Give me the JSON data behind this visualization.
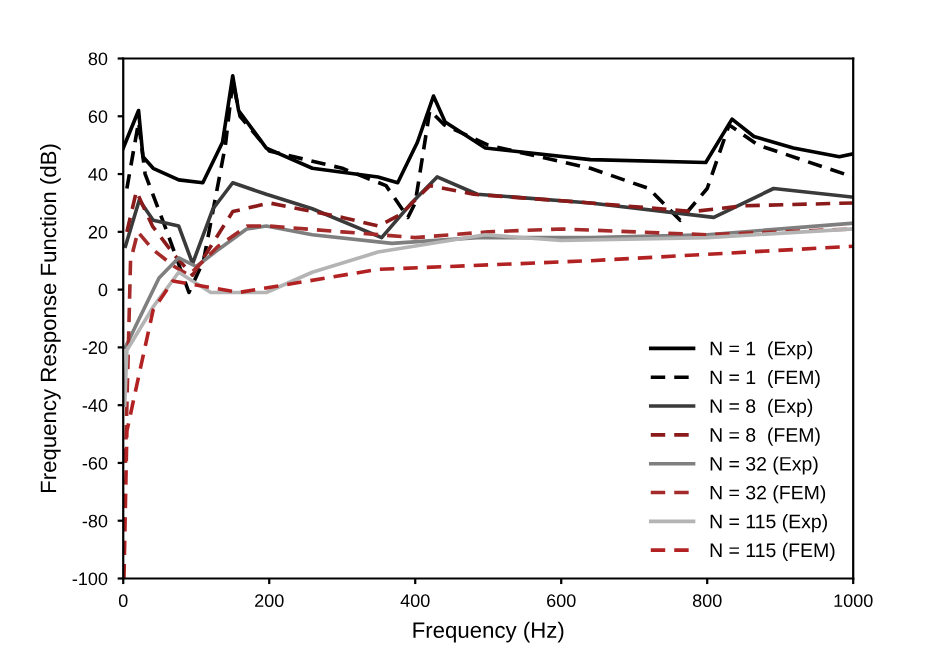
{
  "chart_data": {
    "type": "line",
    "xlabel": "Frequency (Hz)",
    "ylabel": "Frequency Response Function (dB)",
    "xlim": [
      0,
      1000
    ],
    "ylim": [
      -100,
      80
    ],
    "xticks": [
      0,
      200,
      400,
      600,
      800,
      1000
    ],
    "yticks": [
      -100,
      -80,
      -60,
      -40,
      -20,
      0,
      20,
      40,
      60,
      80
    ],
    "grid": false,
    "legend": "bottom right",
    "marker": "none",
    "series": [
      {
        "name": "N = 1  (Exp)",
        "color": "#000000",
        "line_style": "solid",
        "x": [
          0,
          21,
          27,
          41,
          76,
          109,
          136,
          150,
          158,
          196,
          259,
          349,
          376,
          403,
          425,
          441,
          496,
          640,
          798,
          834,
          864,
          918,
          981,
          1000
        ],
        "values": [
          49,
          62,
          46,
          42,
          38,
          37,
          51,
          74,
          62,
          49,
          42,
          39,
          37,
          51,
          67,
          58,
          49,
          45,
          44,
          59,
          53,
          49,
          46,
          47
        ]
      },
      {
        "name": "N = 1  (FEM)",
        "color": "#000000",
        "line_style": "dashed",
        "x": [
          5,
          21,
          30,
          60,
          90,
          110,
          140,
          150,
          160,
          200,
          300,
          360,
          390,
          400,
          420,
          440,
          500,
          640,
          720,
          763,
          800,
          830,
          870,
          1000
        ],
        "values": [
          35,
          58,
          40,
          20,
          -1,
          10,
          50,
          72,
          60,
          48,
          42,
          36,
          25,
          30,
          62,
          57,
          50,
          42,
          35,
          24,
          35,
          57,
          50,
          39
        ]
      },
      {
        "name": "N = 8  (Exp)",
        "color": "#3a3a3a",
        "line_style": "solid",
        "x": [
          3,
          22,
          41,
          76,
          95,
          123,
          150,
          196,
          259,
          354,
          395,
          430,
          485,
          640,
          809,
          891,
          1000
        ],
        "values": [
          15,
          31,
          24,
          22,
          9,
          28,
          37,
          33,
          28,
          18,
          30,
          39,
          33,
          30,
          25,
          35,
          32
        ]
      },
      {
        "name": "N = 8  (FEM)",
        "color": "#8b1a1a",
        "line_style": "dashed",
        "x": [
          5,
          18,
          40,
          70,
          95,
          120,
          150,
          200,
          300,
          350,
          380,
          420,
          480,
          640,
          780,
          850,
          1000
        ],
        "values": [
          20,
          34,
          22,
          12,
          5,
          15,
          27,
          30,
          25,
          22,
          26,
          36,
          33,
          30,
          27,
          29,
          30
        ]
      },
      {
        "name": "N = 32 (Exp)",
        "color": "#7f7f7f",
        "line_style": "solid",
        "x": [
          3,
          22,
          49,
          76,
          100,
          131,
          169,
          196,
          259,
          368,
          485,
          640,
          800,
          1000
        ],
        "values": [
          -20,
          -10,
          4,
          11,
          8,
          14,
          21,
          22,
          19,
          16,
          18,
          18,
          19,
          23
        ]
      },
      {
        "name": "N = 32 (FEM)",
        "color": "#a52a2a",
        "line_style": "dashed",
        "x": [
          3,
          10,
          20,
          40,
          70,
          90,
          130,
          170,
          200,
          300,
          400,
          500,
          600,
          800,
          1000
        ],
        "values": [
          -60,
          10,
          20,
          14,
          8,
          5,
          15,
          22,
          22,
          20,
          18,
          20,
          21,
          19,
          21
        ]
      },
      {
        "name": "N = 115 (Exp)",
        "color": "#b4b4b4",
        "line_style": "solid",
        "x": [
          2,
          5,
          41,
          76,
          120,
          196,
          259,
          349,
          496,
          600,
          800,
          1000
        ],
        "values": [
          -40,
          -21,
          -6,
          6,
          -1,
          -1,
          6,
          13,
          19,
          17,
          18,
          21
        ]
      },
      {
        "name": "N = 115 (FEM)",
        "color": "#b22222",
        "line_style": "dashed",
        "x": [
          1,
          5,
          22,
          41,
          68,
          158,
          349,
          640,
          1000
        ],
        "values": [
          -100,
          -49,
          -29,
          -7,
          3,
          -1,
          7,
          10,
          15
        ]
      }
    ]
  }
}
